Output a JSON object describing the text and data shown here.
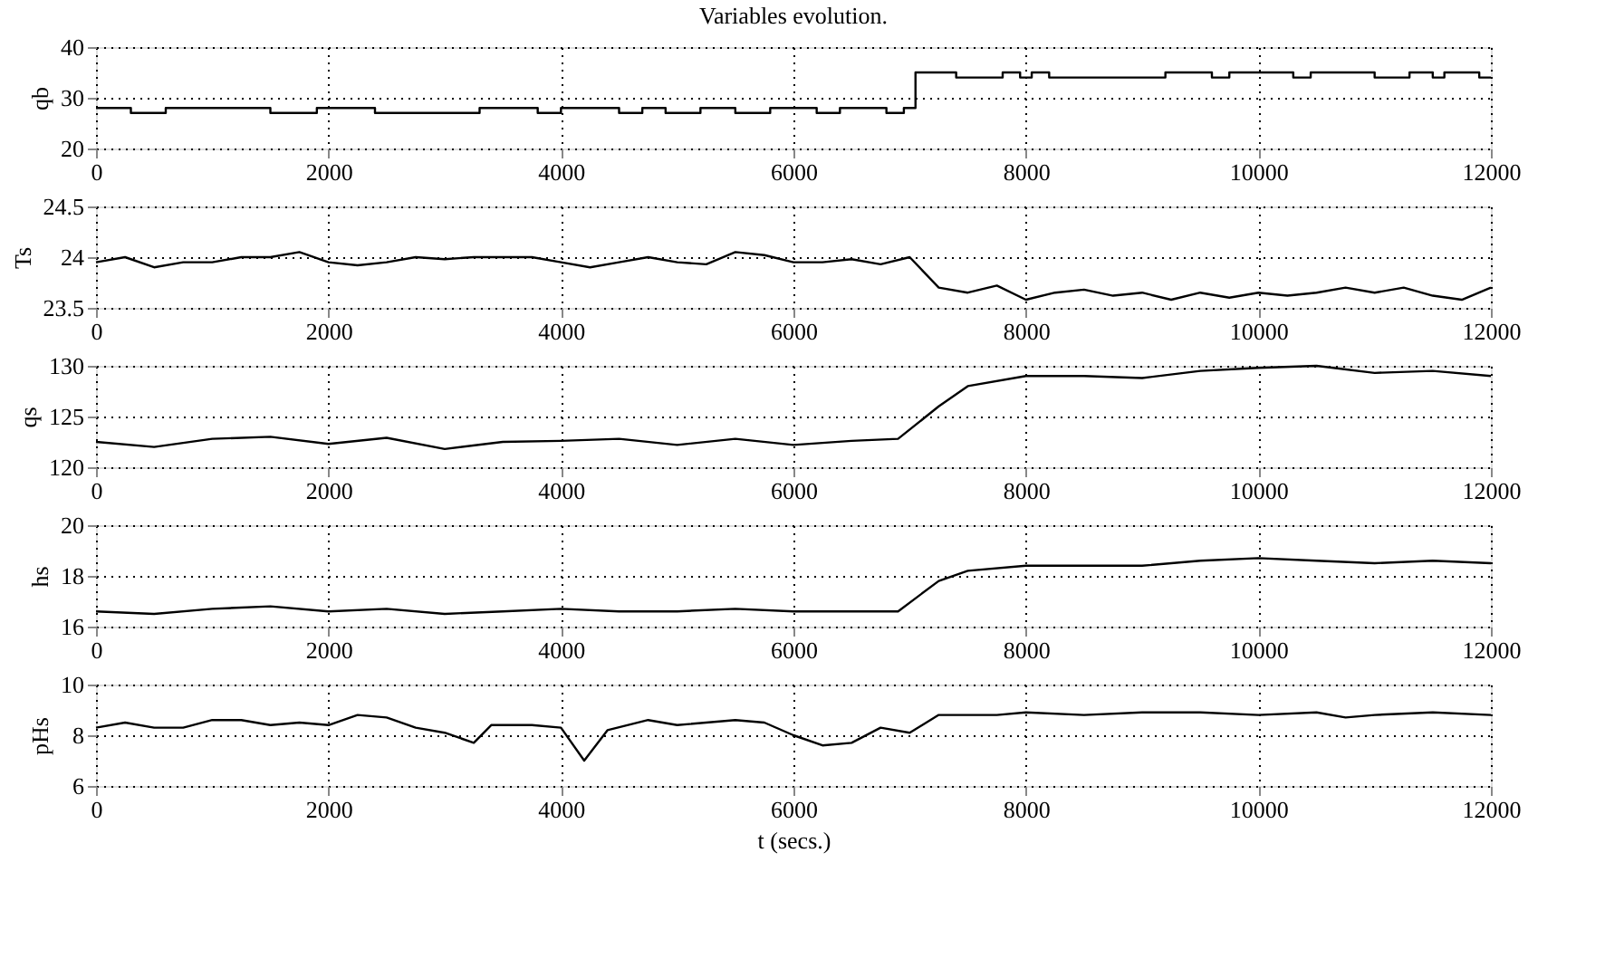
{
  "chart_data": [
    {
      "type": "step",
      "title": "Variables evolution.",
      "ylabel": "qb",
      "x": [
        0,
        300,
        600,
        1500,
        1900,
        2400,
        3000,
        3300,
        3800,
        4000,
        4500,
        4700,
        4900,
        5200,
        5500,
        5800,
        6200,
        6400,
        6800,
        6950,
        7050,
        7400,
        7800,
        7950,
        8050,
        8200,
        9200,
        9600,
        9750,
        10300,
        10450,
        11000,
        11300,
        11500,
        11600,
        11900,
        12000
      ],
      "series": [
        {
          "color": "#000000",
          "values": [
            28,
            27,
            28,
            27,
            28,
            27,
            27,
            28,
            27,
            28,
            27,
            28,
            27,
            28,
            27,
            28,
            27,
            28,
            27,
            28,
            35,
            34,
            35,
            34,
            35,
            34,
            35,
            34,
            35,
            34,
            35,
            34,
            35,
            34,
            35,
            34,
            34
          ]
        }
      ],
      "xlim": [
        0,
        12000
      ],
      "xticks": [
        0,
        2000,
        4000,
        6000,
        8000,
        10000,
        12000
      ],
      "ylim": [
        20,
        40
      ],
      "yticks": [
        20,
        30,
        40
      ],
      "grid": true,
      "line_style": "solid"
    },
    {
      "type": "line",
      "ylabel": "Ts",
      "x": [
        0,
        250,
        500,
        750,
        1000,
        1250,
        1500,
        1750,
        2000,
        2250,
        2500,
        2750,
        3000,
        3250,
        3500,
        3750,
        4000,
        4250,
        4500,
        4750,
        5000,
        5250,
        5500,
        5750,
        6000,
        6250,
        6500,
        6750,
        7000,
        7250,
        7500,
        7750,
        8000,
        8250,
        8500,
        8750,
        9000,
        9250,
        9500,
        9750,
        10000,
        10250,
        10500,
        10750,
        11000,
        11250,
        11500,
        11750,
        12000
      ],
      "series": [
        {
          "color": "#000000",
          "values": [
            23.95,
            24.0,
            23.9,
            23.95,
            23.95,
            24.0,
            24.0,
            24.05,
            23.95,
            23.92,
            23.95,
            24.0,
            23.98,
            24.0,
            24.0,
            24.0,
            23.95,
            23.9,
            23.95,
            24.0,
            23.95,
            23.93,
            24.05,
            24.02,
            23.95,
            23.95,
            23.98,
            23.93,
            24.0,
            23.7,
            23.65,
            23.72,
            23.58,
            23.65,
            23.68,
            23.62,
            23.65,
            23.58,
            23.65,
            23.6,
            23.65,
            23.62,
            23.65,
            23.7,
            23.65,
            23.7,
            23.62,
            23.58,
            23.7
          ]
        }
      ],
      "xlim": [
        0,
        12000
      ],
      "xticks": [
        0,
        2000,
        4000,
        6000,
        8000,
        10000,
        12000
      ],
      "ylim": [
        23.5,
        24.5
      ],
      "yticks": [
        23.5,
        24,
        24.5
      ],
      "grid": true,
      "line_style": "solid"
    },
    {
      "type": "line",
      "ylabel": "qs",
      "x": [
        0,
        500,
        1000,
        1500,
        2000,
        2500,
        3000,
        3500,
        4000,
        4500,
        5000,
        5500,
        6000,
        6500,
        6900,
        7250,
        7500,
        8000,
        8500,
        9000,
        9500,
        10000,
        10500,
        11000,
        11500,
        12000
      ],
      "series": [
        {
          "color": "#000000",
          "values": [
            122.5,
            122,
            122.8,
            123,
            122.3,
            122.9,
            121.8,
            122.5,
            122.6,
            122.8,
            122.2,
            122.8,
            122.2,
            122.6,
            122.8,
            126,
            128,
            129,
            129,
            128.8,
            129.5,
            129.8,
            130,
            129.3,
            129.5,
            129
          ]
        }
      ],
      "xlim": [
        0,
        12000
      ],
      "xticks": [
        0,
        2000,
        4000,
        6000,
        8000,
        10000,
        12000
      ],
      "ylim": [
        120,
        130
      ],
      "yticks": [
        120,
        125,
        130
      ],
      "grid": true,
      "line_style": "solid"
    },
    {
      "type": "line",
      "ylabel": "hs",
      "x": [
        0,
        500,
        1000,
        1500,
        2000,
        2500,
        3000,
        3500,
        4000,
        4500,
        5000,
        5500,
        6000,
        6500,
        6900,
        7250,
        7500,
        8000,
        8500,
        9000,
        9500,
        10000,
        10500,
        11000,
        11500,
        12000
      ],
      "series": [
        {
          "color": "#000000",
          "values": [
            16.6,
            16.5,
            16.7,
            16.8,
            16.6,
            16.7,
            16.5,
            16.6,
            16.7,
            16.6,
            16.6,
            16.7,
            16.6,
            16.6,
            16.6,
            17.8,
            18.2,
            18.4,
            18.4,
            18.4,
            18.6,
            18.7,
            18.6,
            18.5,
            18.6,
            18.5
          ]
        }
      ],
      "xlim": [
        0,
        12000
      ],
      "xticks": [
        0,
        2000,
        4000,
        6000,
        8000,
        10000,
        12000
      ],
      "ylim": [
        16,
        20
      ],
      "yticks": [
        16,
        18,
        20
      ],
      "grid": true,
      "line_style": "solid"
    },
    {
      "type": "line",
      "ylabel": "pHs",
      "xlabel": "t (secs.)",
      "x": [
        0,
        250,
        500,
        750,
        1000,
        1250,
        1500,
        1750,
        2000,
        2250,
        2500,
        2750,
        3000,
        3250,
        3400,
        3750,
        4000,
        4200,
        4400,
        4750,
        5000,
        5500,
        5750,
        6000,
        6250,
        6500,
        6750,
        7000,
        7250,
        7750,
        8000,
        8500,
        9000,
        9500,
        10000,
        10500,
        10750,
        11000,
        11500,
        12000
      ],
      "series": [
        {
          "color": "#000000",
          "values": [
            8.3,
            8.5,
            8.3,
            8.3,
            8.6,
            8.6,
            8.4,
            8.5,
            8.4,
            8.8,
            8.7,
            8.3,
            8.1,
            7.7,
            8.4,
            8.4,
            8.3,
            7.0,
            8.2,
            8.6,
            8.4,
            8.6,
            8.5,
            8.0,
            7.6,
            7.7,
            8.3,
            8.1,
            8.8,
            8.8,
            8.9,
            8.8,
            8.9,
            8.9,
            8.8,
            8.9,
            8.7,
            8.8,
            8.9,
            8.8
          ]
        }
      ],
      "xlim": [
        0,
        12000
      ],
      "xticks": [
        0,
        2000,
        4000,
        6000,
        8000,
        10000,
        12000
      ],
      "ylim": [
        6,
        10
      ],
      "yticks": [
        6,
        8,
        10
      ],
      "grid": true,
      "line_style": "solid"
    }
  ]
}
